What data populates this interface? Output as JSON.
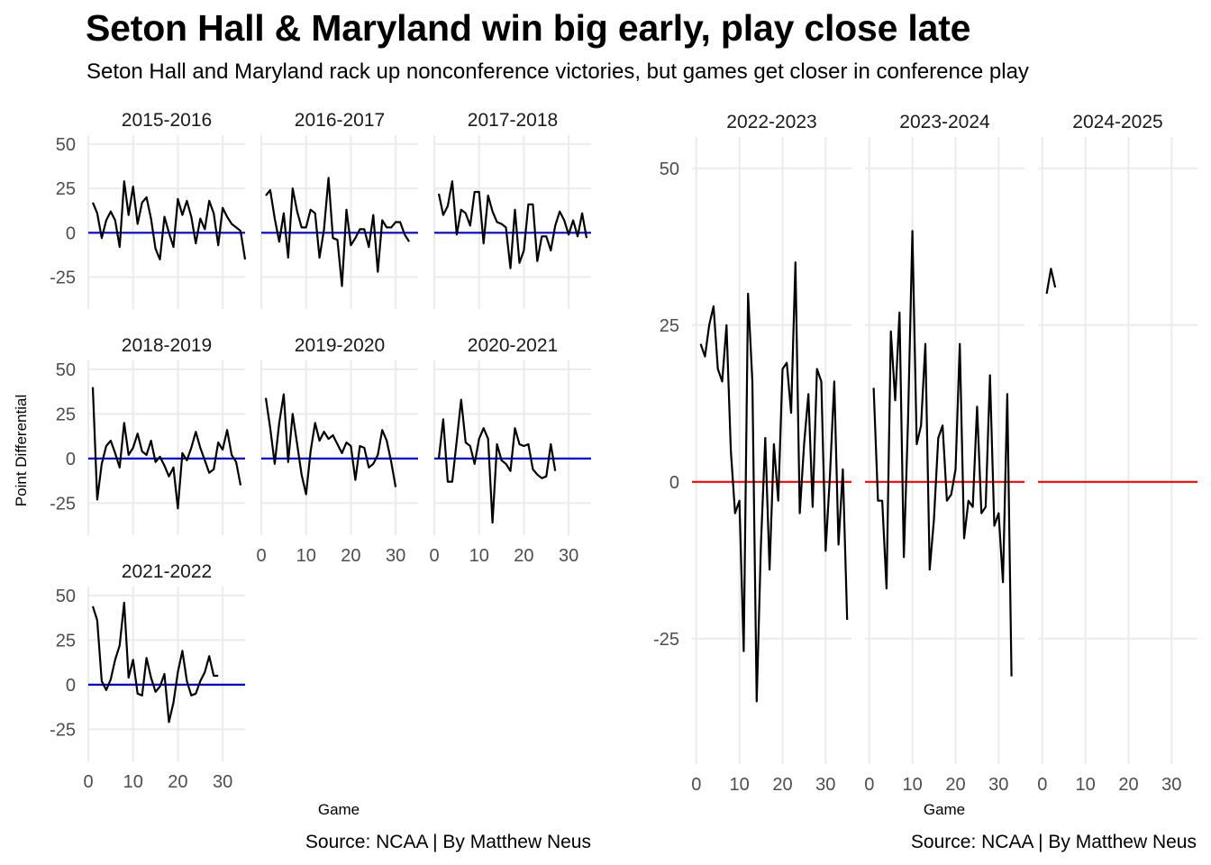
{
  "title": "Seton Hall & Maryland win big early, play close late",
  "subtitle": "Seton Hall and Maryland rack up nonconference victories, but games get closer in conference play",
  "colors": {
    "left_reference_line": "#0000ff",
    "right_reference_line": "#ff0000",
    "series_line": "#000000",
    "grid": "#ebebeb"
  },
  "chart_data": [
    {
      "type": "line",
      "layout": "facet-grid",
      "ylabel": "Point Differential",
      "xlabel": "Game",
      "caption": "Source: NCAA | By Matthew Neus",
      "xlim": [
        0,
        35
      ],
      "ylim": [
        -43,
        55
      ],
      "x_ticks": [
        0,
        10,
        20,
        30
      ],
      "y_ticks": [
        -25,
        0,
        25,
        50
      ],
      "reference_line": 0,
      "facets": [
        {
          "name": "2015-2016",
          "values": [
            17,
            11,
            -3,
            7,
            12,
            7,
            -8,
            29,
            10,
            26,
            5,
            17,
            20,
            8,
            -9,
            -15,
            9,
            0,
            -8,
            19,
            10,
            18,
            9,
            -6,
            8,
            2,
            18,
            11,
            -7,
            14,
            9,
            5,
            3,
            1,
            -15
          ]
        },
        {
          "name": "2016-2017",
          "values": [
            21,
            24,
            8,
            -5,
            11,
            -14,
            25,
            12,
            3,
            3,
            13,
            11,
            -14,
            2,
            31,
            -3,
            -4,
            -30,
            13,
            -7,
            -3,
            2,
            2,
            -8,
            10,
            -22,
            7,
            3,
            3,
            6,
            6,
            -1,
            -5
          ]
        },
        {
          "name": "2017-2018",
          "values": [
            22,
            10,
            15,
            29,
            -1,
            13,
            11,
            4,
            23,
            23,
            -6,
            21,
            12,
            6,
            5,
            3,
            -20,
            13,
            -17,
            -10,
            16,
            16,
            -16,
            -2,
            -2,
            -10,
            4,
            12,
            7,
            -1,
            7,
            -2,
            11,
            -3
          ]
        },
        {
          "name": "2018-2019",
          "values": [
            40,
            -23,
            -3,
            7,
            10,
            3,
            -5,
            20,
            2,
            6,
            14,
            4,
            2,
            10,
            -2,
            1,
            -4,
            -10,
            -5,
            -28,
            3,
            -1,
            6,
            15,
            6,
            -1,
            -8,
            -6,
            9,
            5,
            16,
            2,
            -2,
            -15
          ]
        },
        {
          "name": "2019-2020",
          "values": [
            34,
            17,
            -3,
            20,
            36,
            -2,
            25,
            8,
            -9,
            -20,
            4,
            20,
            10,
            15,
            11,
            13,
            8,
            3,
            9,
            7,
            -12,
            7,
            6,
            -5,
            -3,
            2,
            16,
            10,
            -2,
            -16
          ]
        },
        {
          "name": "2020-2021",
          "values": [
            0,
            22,
            -13,
            -13,
            10,
            33,
            9,
            7,
            -3,
            11,
            17,
            11,
            -36,
            8,
            -1,
            -3,
            -7,
            17,
            8,
            7,
            8,
            -6,
            -9,
            -11,
            -10,
            8,
            -7
          ]
        },
        {
          "name": "2021-2022",
          "values": [
            44,
            36,
            2,
            -3,
            3,
            14,
            22,
            46,
            4,
            14,
            -5,
            -6,
            15,
            4,
            -4,
            -1,
            6,
            -21,
            -10,
            7,
            19,
            2,
            -6,
            -5,
            2,
            7,
            16,
            5,
            5
          ]
        }
      ]
    },
    {
      "type": "line",
      "layout": "facet-row",
      "ylabel": "",
      "xlabel": "Game",
      "caption": "Source: NCAA | By Matthew Neus",
      "xlim": [
        -1,
        36
      ],
      "ylim": [
        -45,
        55
      ],
      "x_ticks": [
        0,
        10,
        20,
        30
      ],
      "y_ticks": [
        -25,
        0,
        25,
        50
      ],
      "reference_line": 0,
      "facets": [
        {
          "name": "2022-2023",
          "values": [
            22,
            20,
            25,
            28,
            18,
            16,
            25,
            5,
            -5,
            -3,
            -27,
            30,
            16,
            -35,
            -10,
            7,
            -14,
            6,
            -3,
            18,
            19,
            11,
            35,
            -5,
            6,
            14,
            -4,
            18,
            16,
            -11,
            1,
            16,
            -10,
            2,
            -22
          ]
        },
        {
          "name": "2023-2024",
          "values": [
            15,
            -3,
            -3,
            -17,
            24,
            13,
            27,
            -12,
            10,
            40,
            6,
            9,
            22,
            -14,
            -6,
            7,
            9,
            -3,
            -2,
            2,
            22,
            -9,
            -3,
            -4,
            12,
            -5,
            -4,
            17,
            -7,
            -5,
            -16,
            14,
            -31
          ]
        },
        {
          "name": "2024-2025",
          "values": [
            30,
            34,
            31
          ]
        }
      ]
    }
  ]
}
